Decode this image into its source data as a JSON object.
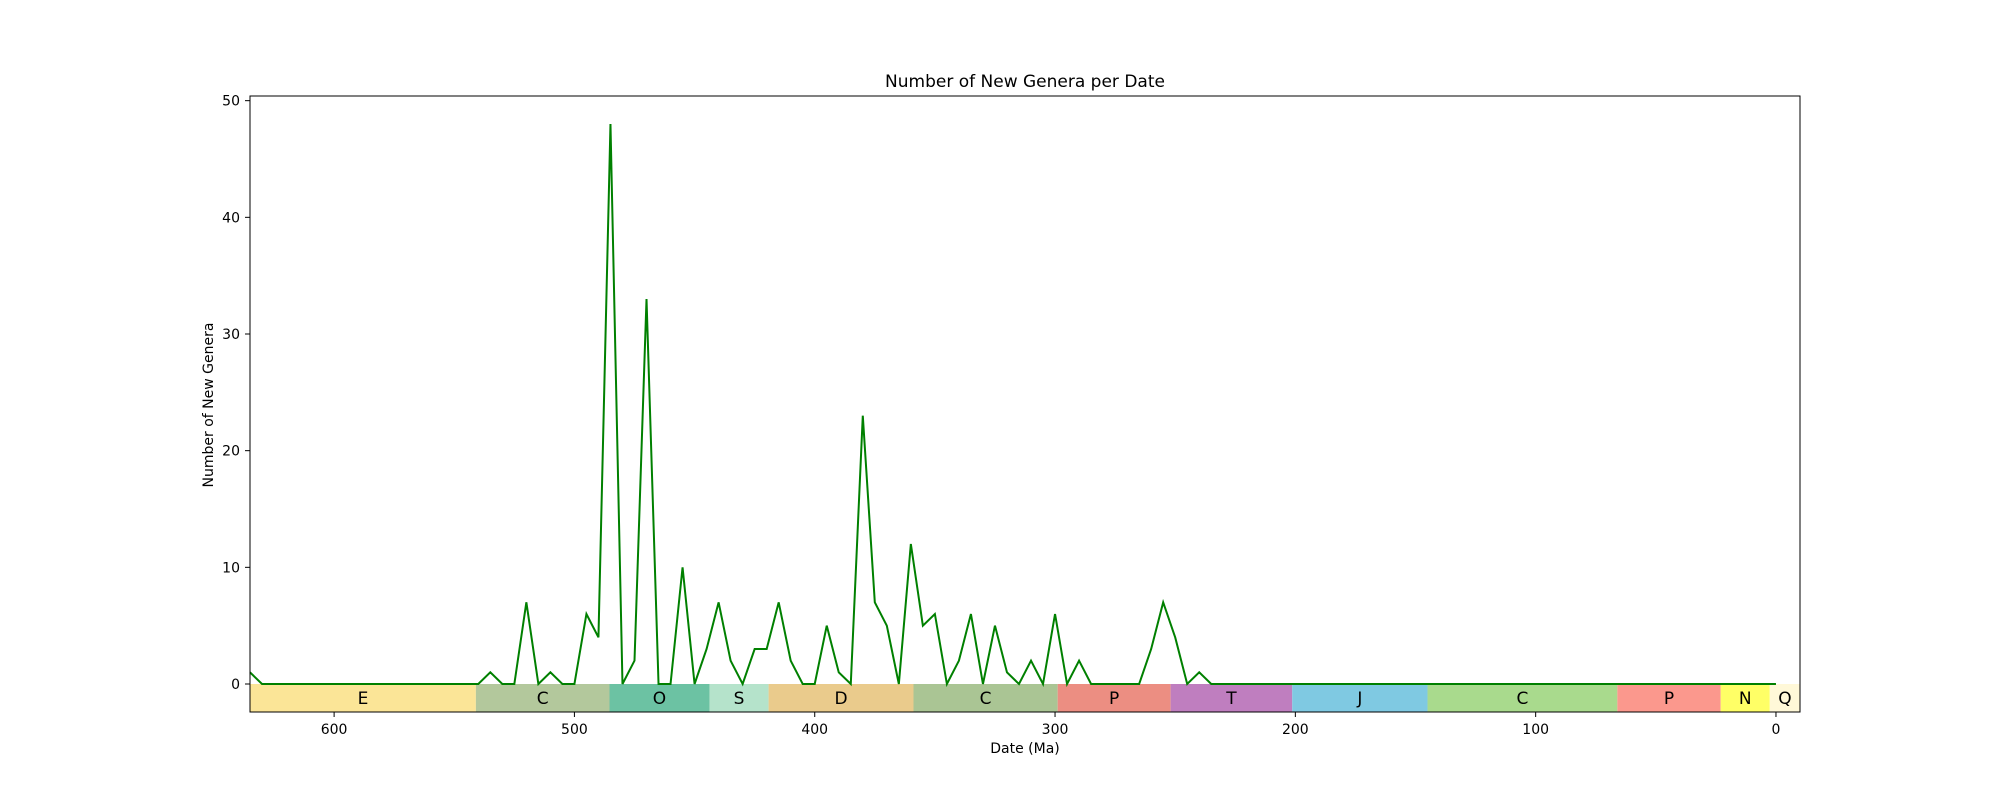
{
  "chart_data": {
    "type": "line",
    "title": "Number of New Genera per Date",
    "xlabel": "Date (Ma)",
    "ylabel": "Number of New Genera",
    "xlim": [
      635,
      -10
    ],
    "ylim": [
      -2.4,
      50.4
    ],
    "x_inverted": true,
    "grid": false,
    "legend": "none",
    "x_ticks": [
      600,
      500,
      400,
      300,
      200,
      100,
      0
    ],
    "y_ticks": [
      0,
      10,
      20,
      30,
      40,
      50
    ],
    "series": [
      {
        "color": "#008000",
        "x": [
          635,
          630,
          625,
          545,
          540,
          535,
          530,
          525,
          520,
          515,
          510,
          505,
          500,
          495,
          490,
          485,
          480,
          475,
          470,
          465,
          460,
          455,
          450,
          445,
          440,
          435,
          430,
          425,
          420,
          415,
          410,
          405,
          400,
          395,
          390,
          385,
          380,
          375,
          370,
          365,
          360,
          355,
          350,
          345,
          340,
          335,
          330,
          325,
          320,
          315,
          310,
          305,
          300,
          295,
          290,
          285,
          280,
          275,
          270,
          265,
          260,
          255,
          250,
          245,
          240,
          235,
          230,
          225,
          0
        ],
        "y": [
          1,
          0,
          0,
          0,
          0,
          1,
          0,
          0,
          7,
          0,
          1,
          0,
          0,
          6,
          4,
          48,
          0,
          2,
          33,
          0,
          0,
          10,
          0,
          3,
          7,
          2,
          0,
          3,
          3,
          7,
          2,
          0,
          0,
          5,
          1,
          0,
          23,
          7,
          5,
          0,
          12,
          5,
          6,
          0,
          2,
          6,
          0,
          5,
          1,
          0,
          2,
          0,
          6,
          0,
          2,
          0,
          0,
          0,
          0,
          0,
          3,
          7,
          4,
          0,
          1,
          0,
          0,
          0,
          0
        ]
      }
    ],
    "periods": [
      {
        "label": "E",
        "start": 635,
        "end": 541,
        "color": "#FBE597"
      },
      {
        "label": "C",
        "start": 541,
        "end": 485.4,
        "color": "#B3C89C"
      },
      {
        "label": "O",
        "start": 485.4,
        "end": 443.8,
        "color": "#6CC2A3"
      },
      {
        "label": "S",
        "start": 443.8,
        "end": 419.2,
        "color": "#B5E3CB"
      },
      {
        "label": "D",
        "start": 419.2,
        "end": 358.9,
        "color": "#EACB8C"
      },
      {
        "label": "C",
        "start": 358.9,
        "end": 298.9,
        "color": "#AAC594"
      },
      {
        "label": "P",
        "start": 298.9,
        "end": 251.9,
        "color": "#EC8E82"
      },
      {
        "label": "T",
        "start": 251.9,
        "end": 201.3,
        "color": "#BF7EBF"
      },
      {
        "label": "J",
        "start": 201.3,
        "end": 145,
        "color": "#7FC9E2"
      },
      {
        "label": "C",
        "start": 145,
        "end": 66,
        "color": "#A9DA8D"
      },
      {
        "label": "P",
        "start": 66,
        "end": 23,
        "color": "#FB988D"
      },
      {
        "label": "N",
        "start": 23,
        "end": 2.58,
        "color": "#FFFF66"
      },
      {
        "label": "Q",
        "start": 2.58,
        "end": -10,
        "color": "#FFF8D8"
      }
    ]
  }
}
